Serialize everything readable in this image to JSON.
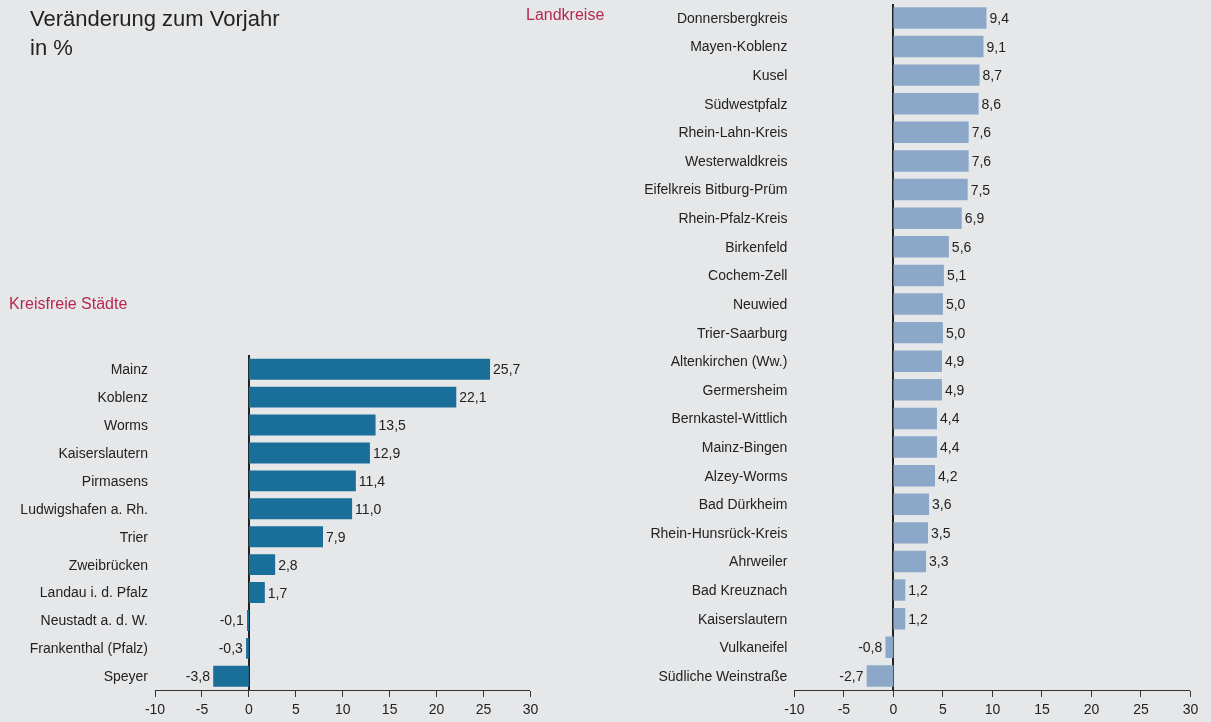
{
  "chart_data": [
    {
      "type": "bar",
      "orientation": "horizontal",
      "title": "Veränderung zum Vorjahr\nin %",
      "subtitle": "Kreisfreie Städte",
      "categories": [
        "Mainz",
        "Koblenz",
        "Worms",
        "Kaiserslautern",
        "Pirmasens",
        "Ludwigshafen a. Rh.",
        "Trier",
        "Zweibrücken",
        "Landau i. d. Pfalz",
        "Neustadt a. d. W.",
        "Frankenthal (Pfalz)",
        "Speyer"
      ],
      "values": [
        25.7,
        22.1,
        13.5,
        12.9,
        11.4,
        11.0,
        7.9,
        2.8,
        1.7,
        -0.1,
        -0.3,
        -3.8
      ],
      "value_labels": [
        "25,7",
        "22,1",
        "13,5",
        "12,9",
        "11,4",
        "11,0",
        "7,9",
        "2,8",
        "1,7",
        "-0,1",
        "-0,3",
        "-3,8"
      ],
      "color": "#1a6e9a",
      "xlim": [
        -10,
        30
      ],
      "xticks": [
        -10,
        -5,
        0,
        5,
        10,
        15,
        20,
        25,
        30
      ],
      "legend": false
    },
    {
      "type": "bar",
      "orientation": "horizontal",
      "title": "Landkreise",
      "categories": [
        "Donnersbergkreis",
        "Mayen-Koblenz",
        "Kusel",
        "Südwestpfalz",
        "Rhein-Lahn-Kreis",
        "Westerwaldkreis",
        "Eifelkreis Bitburg-Prüm",
        "Rhein-Pfalz-Kreis",
        "Birkenfeld",
        "Cochem-Zell",
        "Neuwied",
        "Trier-Saarburg",
        "Altenkirchen (Ww.)",
        "Germersheim",
        "Bernkastel-Wittlich",
        "Mainz-Bingen",
        "Alzey-Worms",
        "Bad Dürkheim",
        "Rhein-Hunsrück-Kreis",
        "Ahrweiler",
        "Bad Kreuznach",
        "Kaiserslautern",
        "Vulkaneifel",
        "Südliche Weinstraße"
      ],
      "values": [
        9.4,
        9.1,
        8.7,
        8.6,
        7.6,
        7.6,
        7.5,
        6.9,
        5.6,
        5.1,
        5.0,
        5.0,
        4.9,
        4.9,
        4.4,
        4.4,
        4.2,
        3.6,
        3.5,
        3.3,
        1.2,
        1.2,
        -0.8,
        -2.7
      ],
      "value_labels": [
        "9,4",
        "9,1",
        "8,7",
        "8,6",
        "7,6",
        "7,6",
        "7,5",
        "6,9",
        "5,6",
        "5,1",
        "5,0",
        "5,0",
        "4,9",
        "4,9",
        "4,4",
        "4,4",
        "4,2",
        "3,6",
        "3,5",
        "3,3",
        "1,2",
        "1,2",
        "-0,8",
        "-2,7"
      ],
      "color": "#8ca8c8",
      "xlim": [
        -10,
        30
      ],
      "xticks": [
        -10,
        -5,
        0,
        5,
        10,
        15,
        20,
        25,
        30
      ],
      "legend": false
    }
  ]
}
